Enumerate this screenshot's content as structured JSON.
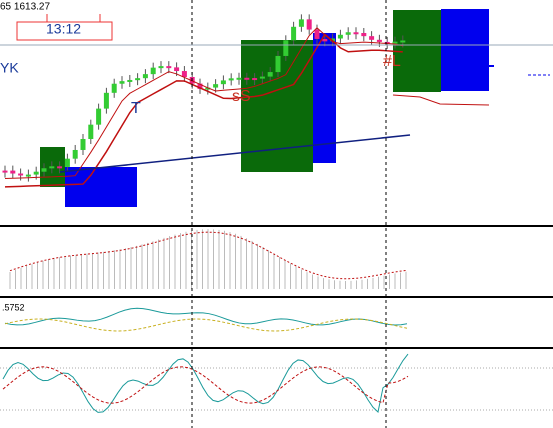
{
  "header": {
    "price": "65 1613.27",
    "time": "13:12"
  },
  "labels": {
    "yk": "YK",
    "t": "T",
    "ss": "sS",
    "hl": "#L"
  },
  "panels": {
    "oscillator": ".5752"
  }
}
